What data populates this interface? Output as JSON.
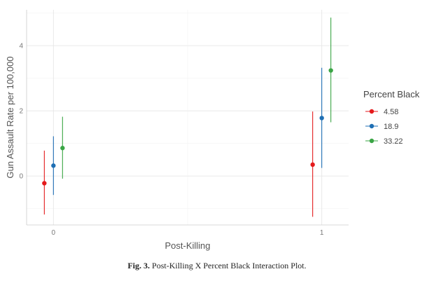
{
  "caption": {
    "label": "Fig. 3.",
    "text": "Post-Killing X Percent Black Interaction Plot."
  },
  "chart_data": {
    "type": "scatter",
    "subtype": "point-range",
    "title": "",
    "xlabel": "Post-Killing",
    "ylabel": "Gun Assault Rate per 100,000",
    "categories": [
      "0",
      "1"
    ],
    "xlim": [
      -0.1,
      1.1
    ],
    "ylim": [
      -1.5,
      5.1
    ],
    "y_ticks": [
      0,
      2,
      4
    ],
    "grid": true,
    "legend": {
      "title": "Percent Black",
      "placement": "right"
    },
    "series": [
      {
        "name": "4.58",
        "color": "#e41a1c",
        "points": [
          {
            "x": "0",
            "y": -0.22,
            "lower": -1.18,
            "upper": 0.78
          },
          {
            "x": "1",
            "y": 0.35,
            "lower": -1.25,
            "upper": 1.98
          }
        ]
      },
      {
        "name": "18.9",
        "color": "#1f6fb4",
        "points": [
          {
            "x": "0",
            "y": 0.32,
            "lower": -0.58,
            "upper": 1.22
          },
          {
            "x": "1",
            "y": 1.78,
            "lower": 0.25,
            "upper": 3.32
          }
        ]
      },
      {
        "name": "33.22",
        "color": "#3aa545",
        "points": [
          {
            "x": "0",
            "y": 0.86,
            "lower": -0.08,
            "upper": 1.82
          },
          {
            "x": "1",
            "y": 3.24,
            "lower": 1.65,
            "upper": 4.86
          }
        ]
      }
    ]
  }
}
